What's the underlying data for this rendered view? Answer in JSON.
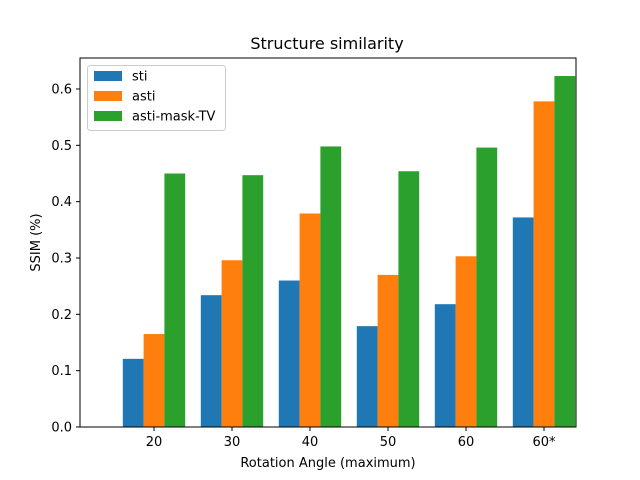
{
  "chart_data": {
    "type": "bar",
    "title": "Structure similarity",
    "xlabel": "Rotation Angle (maximum)",
    "ylabel": "SSIM (%)",
    "categories": [
      "20",
      "30",
      "40",
      "50",
      "60",
      "60*"
    ],
    "series": [
      {
        "name": "sti",
        "color": "#1f77b4",
        "values": [
          0.121,
          0.234,
          0.26,
          0.179,
          0.218,
          0.372
        ]
      },
      {
        "name": "asti",
        "color": "#ff7f0e",
        "values": [
          0.165,
          0.296,
          0.379,
          0.27,
          0.303,
          0.578
        ]
      },
      {
        "name": "asti-mask-TV",
        "color": "#2ca02c",
        "values": [
          0.45,
          0.447,
          0.498,
          0.454,
          0.496,
          0.623
        ]
      }
    ],
    "ylim": [
      0,
      0.655
    ],
    "yticks": [
      0.0,
      0.1,
      0.2,
      0.3,
      0.4,
      0.5,
      0.6
    ],
    "ytick_labels": [
      "0.0",
      "0.1",
      "0.2",
      "0.3",
      "0.4",
      "0.5",
      "0.6"
    ],
    "legend_position": "top-left",
    "grid": false
  }
}
